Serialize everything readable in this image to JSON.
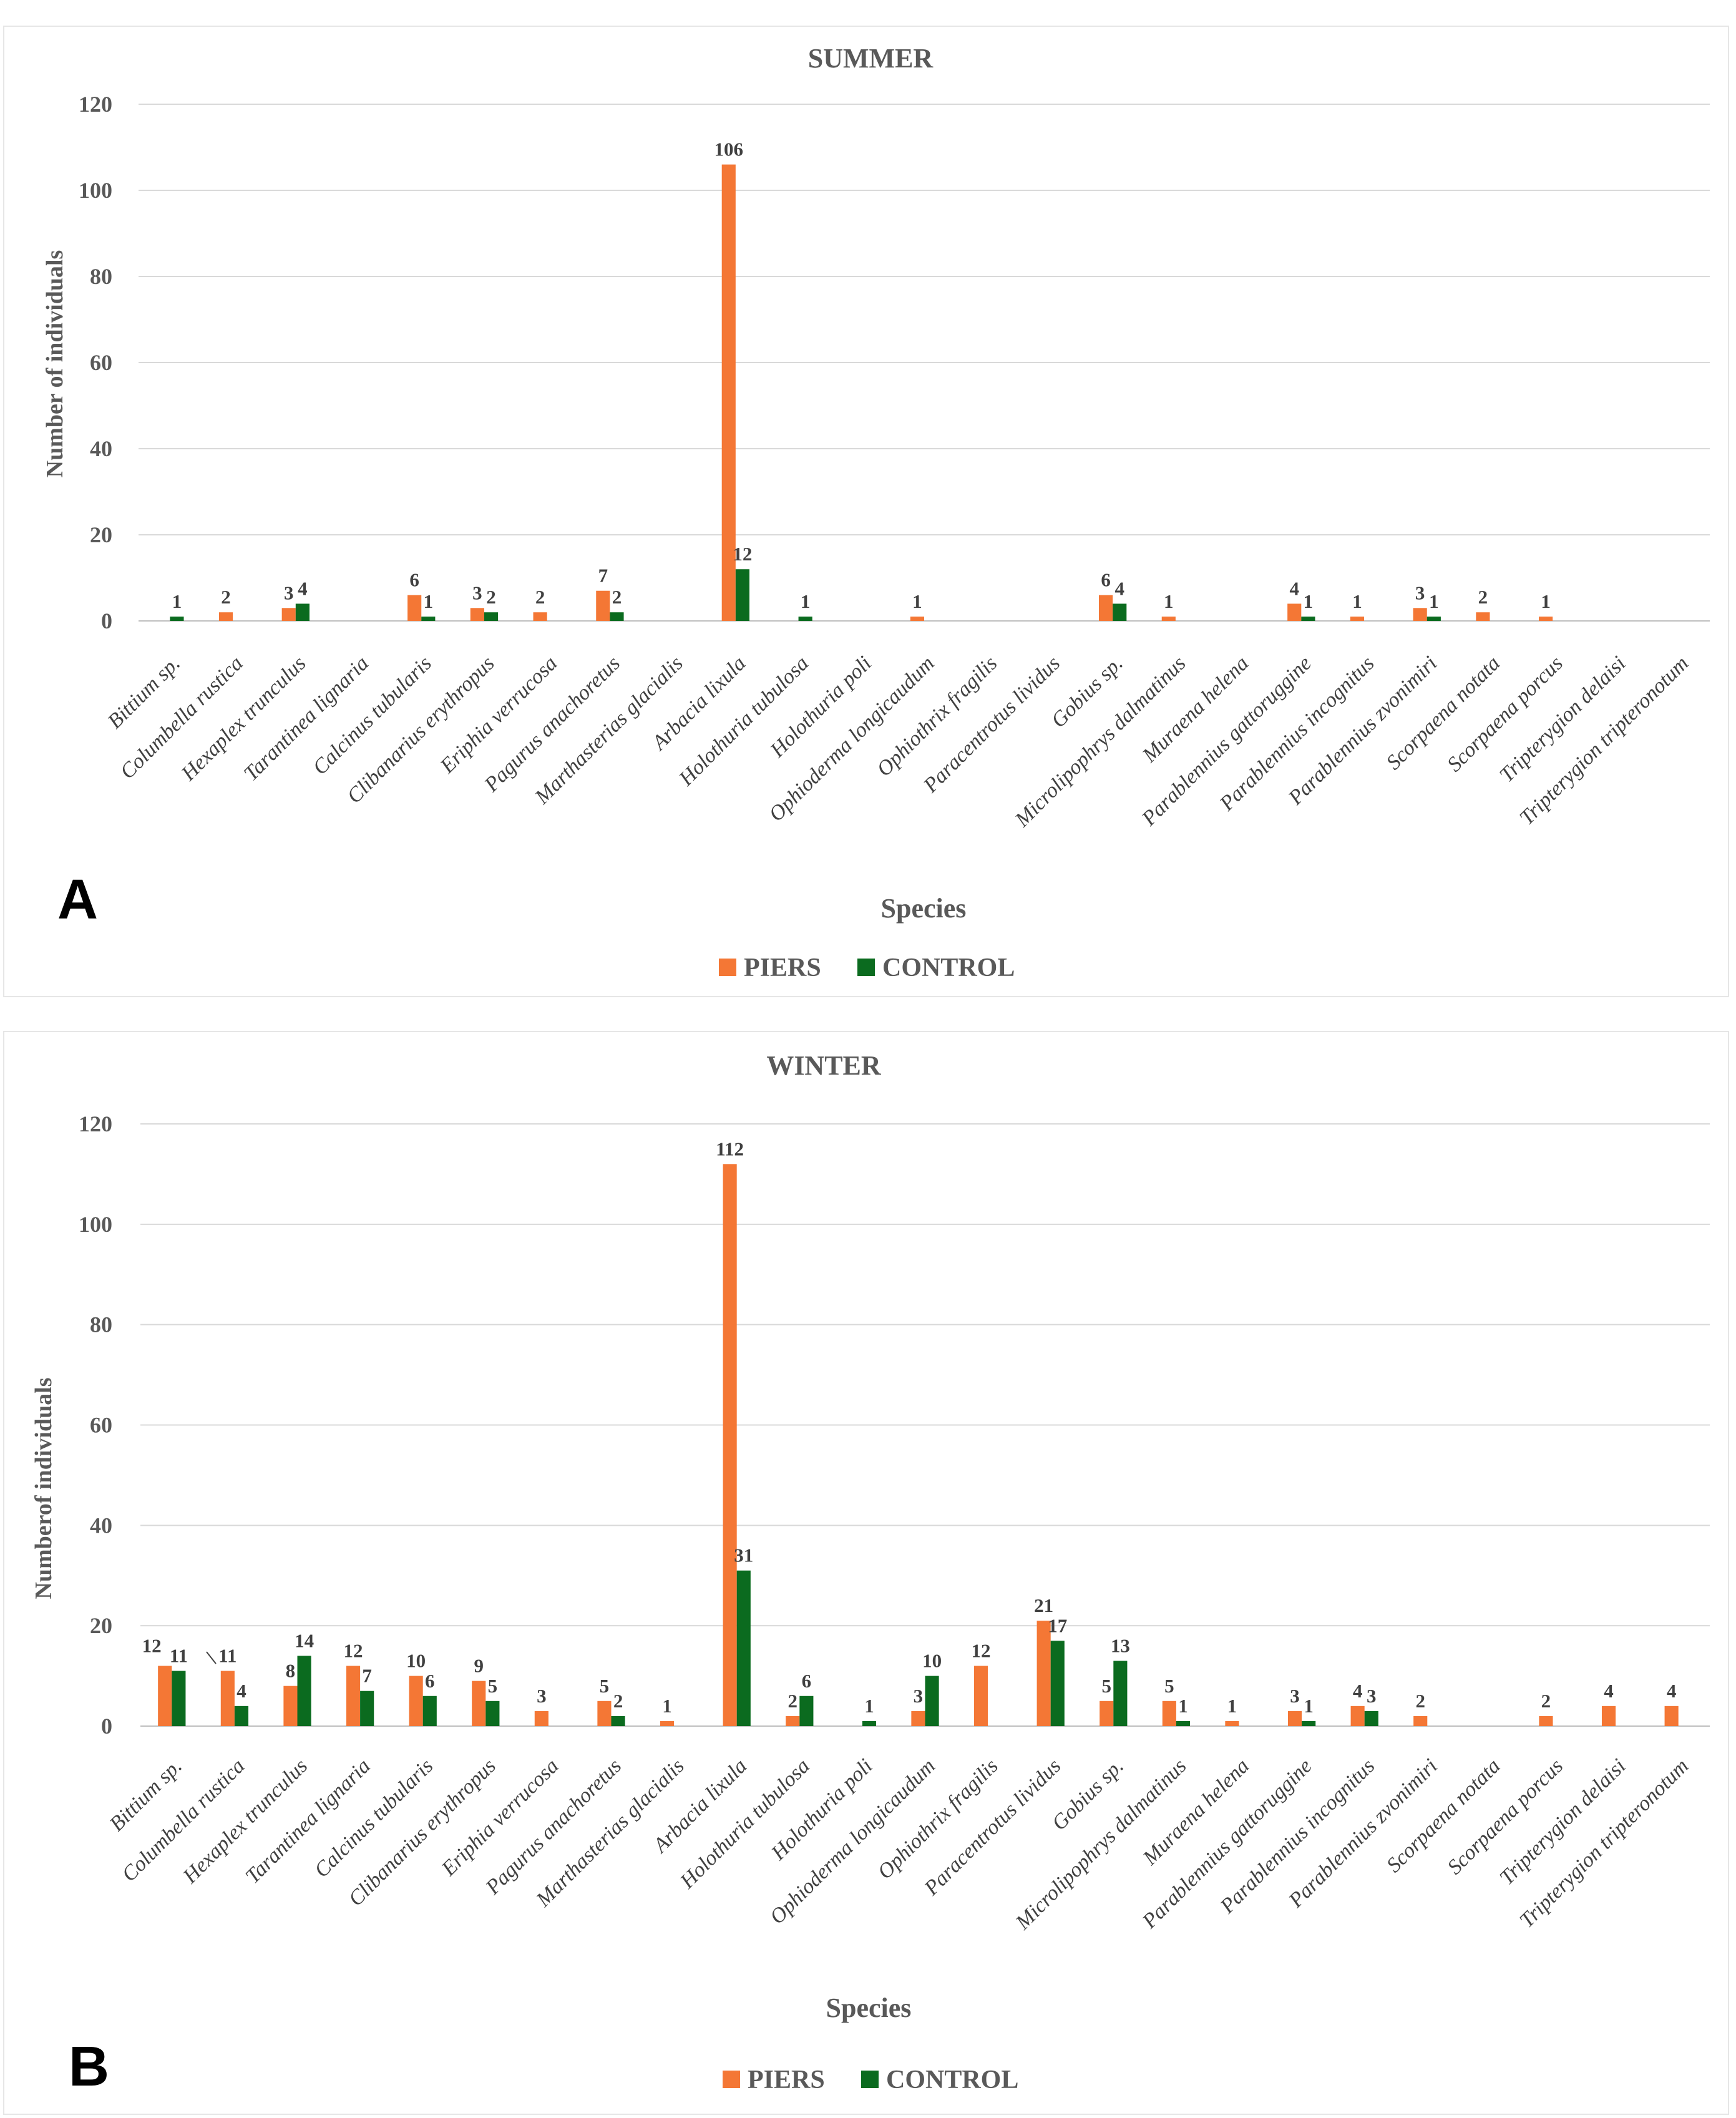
{
  "colors": {
    "piers": "#F47735",
    "control": "#0B6B1F",
    "grid": "#D9D9D9",
    "text": "#595959"
  },
  "chart_data": [
    {
      "type": "bar",
      "panel": "A",
      "title": "SUMMER",
      "xlabel": "Species",
      "ylabel": "Number of individuals",
      "ylim": [
        0,
        120
      ],
      "yticks": [
        "0",
        "20",
        "40",
        "60",
        "80",
        "100",
        "120"
      ],
      "grid": true,
      "legend": "bottom",
      "categories": [
        "Bittium sp.",
        "Columbella rustica",
        "Hexaplex trunculus",
        "Tarantinea lignaria",
        "Calcinus tubularis",
        "Clibanarius  erythropus",
        "Eriphia verrucosa",
        "Pagurus anachoretus",
        "Marthasterias glacialis",
        "Arbacia lixula",
        "Holothuria tubulosa",
        "Holothuria poli",
        "Ophioderma longicaudum",
        "Ophiothrix fragilis",
        "Paracentrotus lividus",
        "Gobius sp.",
        "Microlipophrys dalmatinus",
        "Muraena helena",
        "Parablennius gattoruggine",
        "Parablennius incognitus",
        "Parablennius zvonimiri",
        "Scorpaena notata",
        "Scorpaena porcus",
        "Tripterygion delaisi",
        "Tripterygion tripteronotum"
      ],
      "series": [
        {
          "name": "PIERS",
          "values": [
            0,
            2,
            3,
            0,
            6,
            3,
            2,
            7,
            0,
            106,
            0,
            0,
            1,
            0,
            0,
            6,
            1,
            0,
            4,
            1,
            3,
            2,
            1,
            0,
            0
          ]
        },
        {
          "name": "CONTROL",
          "values": [
            1,
            0,
            4,
            0,
            1,
            2,
            0,
            2,
            0,
            12,
            1,
            0,
            0,
            0,
            0,
            4,
            0,
            0,
            1,
            0,
            1,
            0,
            0,
            0,
            0
          ]
        }
      ]
    },
    {
      "type": "bar",
      "panel": "B",
      "title": "WINTER",
      "xlabel": "Species",
      "ylabel": "Numberof individuals",
      "ylim": [
        0,
        120
      ],
      "yticks": [
        "0",
        "20",
        "40",
        "60",
        "80",
        "100",
        "120"
      ],
      "grid": true,
      "legend": "bottom",
      "categories": [
        "Bittium sp.",
        "Columbella rustica",
        "Hexaplex trunculus",
        "Tarantinea lignaria",
        "Calcinus tubularis",
        "Clibanarius  erythropus",
        "Eriphia verrucosa",
        "Pagurus anachoretus",
        "Marthasterias glacialis",
        "Arbacia lixula",
        "Holothuria tubulosa",
        "Holothuria poli",
        "Ophioderma longicaudum",
        "Ophiothrix fragilis",
        "Paracentrotus lividus",
        "Gobius sp.",
        "Microlipophrys dalmatinus",
        "Muraena helena",
        "Parablennius gattoruggine",
        "Parablennius incognitus",
        "Parablennius zvonimiri",
        "Scorpaena notata",
        "Scorpaena porcus",
        "Tripterygion delaisi",
        "Tripterygion tripteronotum"
      ],
      "series": [
        {
          "name": "PIERS",
          "values": [
            12,
            11,
            8,
            12,
            10,
            9,
            3,
            5,
            1,
            112,
            2,
            0,
            3,
            12,
            21,
            5,
            5,
            1,
            3,
            4,
            2,
            0,
            2,
            4,
            4
          ]
        },
        {
          "name": "CONTROL",
          "values": [
            11,
            4,
            14,
            7,
            6,
            5,
            0,
            2,
            0,
            31,
            6,
            1,
            10,
            0,
            17,
            13,
            1,
            0,
            1,
            3,
            0,
            0,
            0,
            0,
            0
          ]
        }
      ]
    }
  ]
}
